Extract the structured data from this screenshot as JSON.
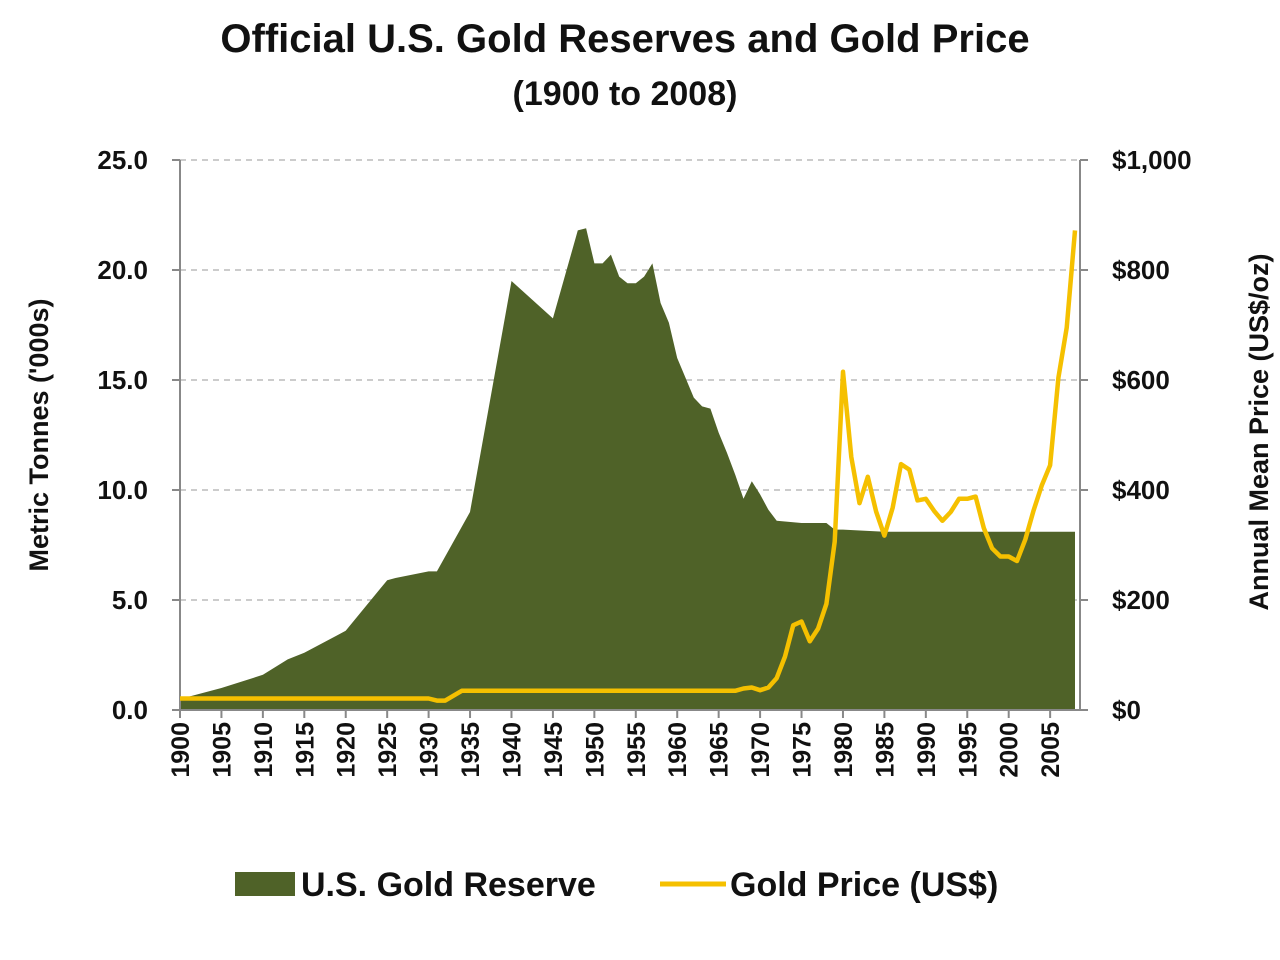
{
  "chart_data": {
    "type": "area-line",
    "title": "Official U.S. Gold Reserves and Gold Price",
    "subtitle": "(1900 to 2008)",
    "y_label": "Metric Tonnes ('000s)",
    "y2_label": "Annual Mean Price (US$/oz)",
    "xlim": [
      1900,
      2008
    ],
    "xticks": [
      1900,
      1905,
      1910,
      1915,
      1920,
      1925,
      1930,
      1935,
      1940,
      1945,
      1950,
      1955,
      1960,
      1965,
      1970,
      1975,
      1980,
      1985,
      1990,
      1995,
      2000,
      2005
    ],
    "ylim": [
      0,
      25
    ],
    "yticks": [
      {
        "value": 0,
        "label": "0.0"
      },
      {
        "value": 5,
        "label": "5.0"
      },
      {
        "value": 10,
        "label": "10.0"
      },
      {
        "value": 15,
        "label": "15.0"
      },
      {
        "value": 20,
        "label": "20.0"
      },
      {
        "value": 25,
        "label": "25.0"
      }
    ],
    "y2lim": [
      0,
      1000
    ],
    "y2ticks": [
      {
        "value": 0,
        "label": "$0"
      },
      {
        "value": 200,
        "label": "$200"
      },
      {
        "value": 400,
        "label": "$400"
      },
      {
        "value": 600,
        "label": "$600"
      },
      {
        "value": 800,
        "label": "$800"
      },
      {
        "value": 1000,
        "label": "$1,000"
      }
    ],
    "grid": true,
    "legend": "bottom",
    "series": [
      {
        "name": "U.S. Gold Reserve",
        "kind": "area",
        "color": "#4f6228",
        "x": [
          1900,
          1905,
          1910,
          1913,
          1915,
          1920,
          1925,
          1926,
          1930,
          1931,
          1935,
          1940,
          1945,
          1948,
          1949,
          1950,
          1951,
          1952,
          1953,
          1954,
          1955,
          1956,
          1957,
          1958,
          1959,
          1960,
          1961,
          1962,
          1963,
          1964,
          1965,
          1966,
          1967,
          1968,
          1969,
          1970,
          1971,
          1972,
          1975,
          1977,
          1978,
          1979,
          1980,
          1985,
          1990,
          2000,
          2008
        ],
        "values": [
          0.5,
          1.0,
          1.6,
          2.3,
          2.6,
          3.6,
          5.9,
          6.0,
          6.3,
          6.3,
          9.0,
          19.5,
          17.8,
          21.8,
          21.9,
          20.3,
          20.3,
          20.7,
          19.7,
          19.4,
          19.4,
          19.7,
          20.3,
          18.5,
          17.6,
          16.0,
          15.1,
          14.2,
          13.8,
          13.7,
          12.6,
          11.7,
          10.7,
          9.6,
          10.4,
          9.8,
          9.1,
          8.6,
          8.5,
          8.5,
          8.5,
          8.2,
          8.2,
          8.1,
          8.1,
          8.1,
          8.1
        ]
      },
      {
        "name": "Gold Price (US$)",
        "kind": "line",
        "axis": "y2",
        "color": "#f5c000",
        "x": [
          1900,
          1930,
          1931,
          1932,
          1933,
          1934,
          1967,
          1968,
          1969,
          1970,
          1971,
          1972,
          1973,
          1974,
          1975,
          1976,
          1977,
          1978,
          1979,
          1980,
          1981,
          1982,
          1983,
          1984,
          1985,
          1986,
          1987,
          1988,
          1989,
          1990,
          1991,
          1992,
          1993,
          1994,
          1995,
          1996,
          1997,
          1998,
          1999,
          2000,
          2001,
          2002,
          2003,
          2004,
          2005,
          2006,
          2007,
          2008
        ],
        "values": [
          21,
          21,
          17,
          17,
          26,
          35,
          35,
          39,
          41,
          36,
          41,
          58,
          97,
          154,
          161,
          125,
          148,
          193,
          306,
          615,
          460,
          376,
          424,
          361,
          317,
          368,
          447,
          437,
          381,
          384,
          362,
          344,
          360,
          384,
          384,
          388,
          331,
          294,
          279,
          279,
          271,
          310,
          363,
          409,
          445,
          604,
          695,
          872
        ]
      }
    ]
  }
}
